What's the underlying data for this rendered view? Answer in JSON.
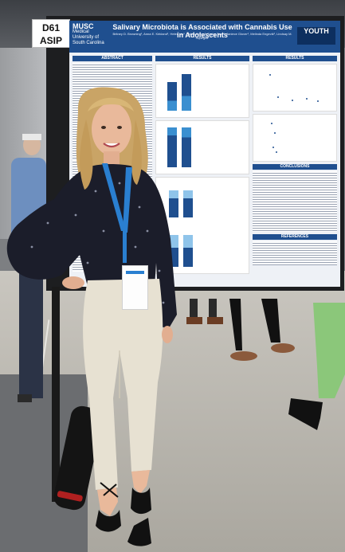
{
  "booth": {
    "line1": "D61",
    "line2": "ASIP"
  },
  "poster": {
    "logo_name": "MUSC",
    "logo_sub": "Medical University of South Carolina",
    "title": "Salivary Microbiota is Associated with Cannabis Use in Adolescents",
    "authors": "Britney D. Browning¹, Anna E. Kirkland¹, Helen Liu¹, Raïna Green¹, Taylor Tose¹, Janiece Glover¹, Melinda Engevik², Lindsay M. Squeglia¹",
    "youth_label": "YOUTH",
    "sections": {
      "abstract": "ABSTRACT",
      "results": "RESULTS",
      "results2": "RESULTS",
      "conclusions": "CONCLUSIONS",
      "references": "REFERENCES"
    }
  },
  "colors": {
    "poster_header": "#1f4f8f",
    "blouse": "#1b1d2a",
    "pants": "#e7e1d2",
    "lanyard": "#2a7fd0",
    "hair": "#c9a466"
  }
}
